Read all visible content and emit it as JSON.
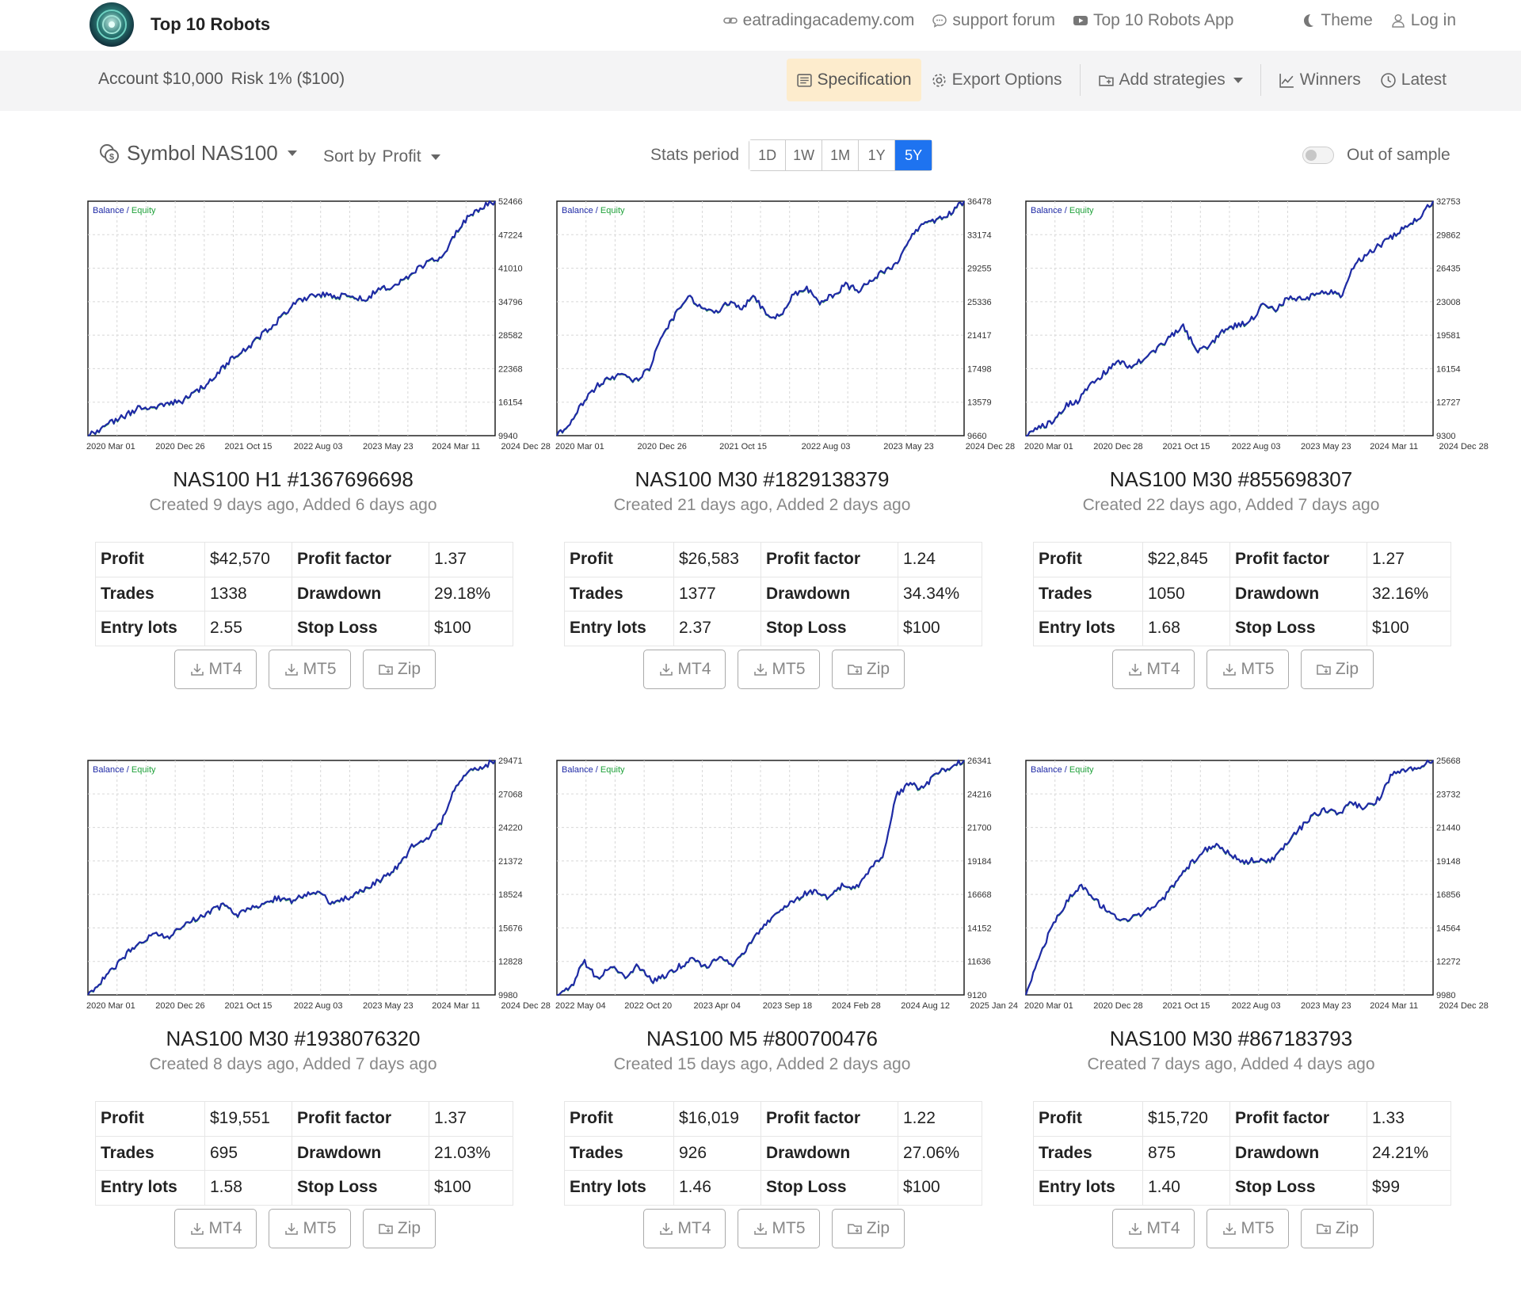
{
  "header": {
    "brand": "Top 10 Robots",
    "links": [
      {
        "label": "eatradingacademy.com",
        "icon": "link-icon"
      },
      {
        "label": "support forum",
        "icon": "chat-icon"
      },
      {
        "label": "Top 10 Robots App",
        "icon": "youtube-icon"
      },
      {
        "label": "Theme",
        "icon": "moon-icon"
      },
      {
        "label": "Log in",
        "icon": "user-icon"
      }
    ]
  },
  "subbar": {
    "account": "Account $10,000",
    "risk": "Risk 1% ($100)",
    "specification": "Specification",
    "export_options": "Export Options",
    "add_strategies": "Add strategies",
    "winners": "Winners",
    "latest": "Latest"
  },
  "filters": {
    "symbol": "Symbol NAS100",
    "sort_by_label": "Sort by",
    "sort_by_value": "Profit",
    "stats_period_label": "Stats period",
    "periods": [
      "1D",
      "1W",
      "1M",
      "1Y",
      "5Y"
    ],
    "active_period": "5Y",
    "out_of_sample": "Out of sample",
    "out_of_sample_on": false
  },
  "labels": {
    "profit": "Profit",
    "trades": "Trades",
    "entry_lots": "Entry lots",
    "profit_factor": "Profit factor",
    "drawdown": "Drawdown",
    "stop_loss": "Stop Loss",
    "mt4": "MT4",
    "mt5": "MT5",
    "zip": "Zip",
    "legend_balance": "Balance",
    "legend_sep": " / ",
    "legend_equity": "Equity"
  },
  "colors": {
    "accent": "#1e73f0",
    "spec_bg": "#fdeccd",
    "balance_line": "#1f2aa6",
    "equity_line": "#1fa13a"
  },
  "cards": [
    {
      "title": "NAS100 H1 #1367696698",
      "created": "Created 9 days ago, Added 6 days ago",
      "profit": "$42,570",
      "profit_factor": "1.37",
      "trades": "1338",
      "drawdown": "29.18%",
      "entry_lots": "2.55",
      "stop_loss": "$100",
      "chart": {
        "y_ticks": [
          "52466",
          "47224",
          "41010",
          "34796",
          "28582",
          "22368",
          "16154",
          "9940"
        ],
        "x_ticks": [
          "2020 Mar 01",
          "2020 Dec 26",
          "2021 Oct 15",
          "2022 Aug 03",
          "2023 May 23",
          "2024 Mar 11",
          "2024 Dec 28"
        ],
        "balance": [
          9940,
          11200,
          12600,
          13800,
          15200,
          14600,
          16100,
          15900,
          17500,
          19200,
          21500,
          24000,
          25500,
          27800,
          29800,
          32000,
          34500,
          35200,
          35500,
          35100,
          35600,
          34500,
          36200,
          37000,
          38000,
          40100,
          41500,
          42300,
          46500,
          49800,
          51500,
          52466
        ]
      }
    },
    {
      "title": "NAS100 M30 #1829138379",
      "created": "Created 21 days ago, Added 2 days ago",
      "profit": "$26,583",
      "profit_factor": "1.24",
      "trades": "1377",
      "drawdown": "34.34%",
      "entry_lots": "2.37",
      "stop_loss": "$100",
      "chart": {
        "y_ticks": [
          "36478",
          "33174",
          "29255",
          "25336",
          "21417",
          "17498",
          "13579",
          "9660"
        ],
        "x_ticks": [
          "2020 Mar 01",
          "2020 Dec 26",
          "2021 Oct 15",
          "2022 Aug 03",
          "2023 May 23",
          "2024 Dec 28"
        ],
        "balance": [
          9660,
          11200,
          13400,
          15300,
          16300,
          16500,
          16000,
          17200,
          21000,
          23500,
          25600,
          24200,
          23600,
          25000,
          24300,
          25500,
          23500,
          23200,
          25800,
          26500,
          24900,
          25800,
          26900,
          26300,
          27400,
          28600,
          29400,
          32800,
          33800,
          34300,
          35200,
          36478
        ]
      }
    },
    {
      "title": "NAS100 M30 #855698307",
      "created": "Created 22 days ago, Added 7 days ago",
      "profit": "$22,845",
      "profit_factor": "1.27",
      "trades": "1050",
      "drawdown": "32.16%",
      "entry_lots": "1.68",
      "stop_loss": "$100",
      "chart": {
        "y_ticks": [
          "32753",
          "29862",
          "26435",
          "23008",
          "19581",
          "16154",
          "12727",
          "9300"
        ],
        "x_ticks": [
          "2020 Mar 01",
          "2020 Dec 28",
          "2021 Oct 15",
          "2022 Aug 03",
          "2023 May 23",
          "2024 Mar 11",
          "2024 Dec 28"
        ],
        "balance": [
          9300,
          10200,
          10600,
          12300,
          12800,
          14500,
          15600,
          16700,
          16200,
          17100,
          18000,
          19200,
          20200,
          17800,
          18400,
          19800,
          20300,
          20600,
          22400,
          21800,
          23100,
          22900,
          23400,
          23700,
          23300,
          26400,
          27500,
          28400,
          29300,
          30300,
          31200,
          32753
        ]
      }
    },
    {
      "title": "NAS100 M30 #1938076320",
      "created": "Created 8 days ago, Added 7 days ago",
      "profit": "$19,551",
      "profit_factor": "1.37",
      "trades": "695",
      "drawdown": "21.03%",
      "entry_lots": "1.58",
      "stop_loss": "$100",
      "chart": {
        "y_ticks": [
          "29471",
          "27068",
          "24220",
          "21372",
          "18524",
          "15676",
          "12828",
          "9980"
        ],
        "x_ticks": [
          "2020 Mar 01",
          "2020 Dec 26",
          "2021 Oct 15",
          "2022 Aug 03",
          "2023 May 23",
          "2024 Mar 11",
          "2024 Dec 28"
        ],
        "balance": [
          9980,
          11100,
          12300,
          13600,
          14400,
          15100,
          14800,
          15700,
          16300,
          16900,
          17500,
          16600,
          17300,
          17600,
          18100,
          17700,
          18300,
          18500,
          17500,
          18000,
          18600,
          19200,
          19900,
          20800,
          22500,
          23000,
          24300,
          27000,
          28500,
          28900,
          29471
        ]
      }
    },
    {
      "title": "NAS100 M5 #800700476",
      "created": "Created 15 days ago, Added 2 days ago",
      "profit": "$16,019",
      "profit_factor": "1.22",
      "trades": "926",
      "drawdown": "27.06%",
      "entry_lots": "1.46",
      "stop_loss": "$100",
      "chart": {
        "y_ticks": [
          "26341",
          "24216",
          "21700",
          "19184",
          "16668",
          "14152",
          "11636",
          "9120"
        ],
        "x_ticks": [
          "2022 May 04",
          "2022 Oct 20",
          "2023 Apr 04",
          "2023 Sep 18",
          "2024 Feb 28",
          "2024 Aug 12",
          "2025 Jan 24"
        ],
        "balance": [
          9120,
          9600,
          11600,
          10300,
          11200,
          10500,
          11300,
          10100,
          10600,
          11200,
          11800,
          11100,
          12100,
          11300,
          12600,
          13800,
          15100,
          15700,
          16400,
          16800,
          16200,
          17200,
          16900,
          18300,
          19300,
          23800,
          24700,
          24200,
          25500,
          25900,
          26341
        ]
      }
    },
    {
      "title": "NAS100 M30 #867183793",
      "created": "Created 7 days ago, Added 4 days ago",
      "profit": "$15,720",
      "profit_factor": "1.33",
      "trades": "875",
      "drawdown": "24.21%",
      "entry_lots": "1.40",
      "stop_loss": "$99",
      "chart": {
        "y_ticks": [
          "25668",
          "23732",
          "21440",
          "19148",
          "16856",
          "14564",
          "12272",
          "9980"
        ],
        "x_ticks": [
          "2020 Mar 01",
          "2020 Dec 28",
          "2021 Oct 15",
          "2022 Aug 03",
          "2023 May 23",
          "2024 Mar 11",
          "2024 Dec 28"
        ],
        "balance": [
          9980,
          12600,
          14700,
          16200,
          17300,
          16400,
          15600,
          14900,
          15200,
          15700,
          16300,
          17400,
          18600,
          19600,
          20100,
          19400,
          18800,
          19100,
          18900,
          19800,
          20900,
          21900,
          22400,
          22100,
          22800,
          22500,
          23100,
          24800,
          25000,
          25200,
          25668
        ]
      }
    }
  ]
}
